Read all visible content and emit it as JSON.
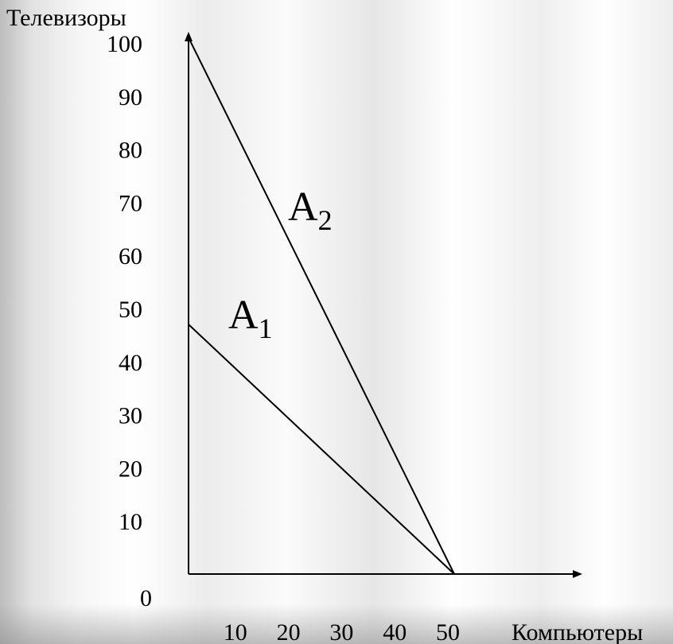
{
  "chart_data": {
    "type": "line",
    "ylabel": "Телевизоры",
    "xlabel": "Компьютеры",
    "origin_label": "0",
    "xlim": [
      0,
      50
    ],
    "ylim": [
      0,
      100
    ],
    "x_ticks": [
      "10",
      "20",
      "30",
      "40",
      "50"
    ],
    "y_ticks": [
      "10",
      "20",
      "30",
      "40",
      "50",
      "60",
      "70",
      "80",
      "90",
      "100"
    ],
    "grid": false,
    "series": [
      {
        "name": "A1",
        "label_main": "A",
        "label_sub": "1",
        "x": [
          0,
          50
        ],
        "y": [
          47,
          0
        ]
      },
      {
        "name": "A2",
        "label_main": "A",
        "label_sub": "2",
        "x": [
          0,
          50
        ],
        "y": [
          101,
          0
        ]
      }
    ]
  }
}
